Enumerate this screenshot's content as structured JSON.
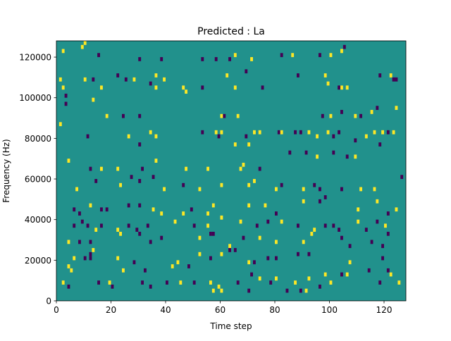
{
  "chart_data": {
    "type": "heatmap",
    "title": "Predicted : La",
    "xlabel": "Time step",
    "ylabel": "Frequency (Hz)",
    "xlim": [
      0,
      128
    ],
    "ylim": [
      0,
      128000
    ],
    "x_ticks": [
      0,
      20,
      40,
      60,
      80,
      100,
      120
    ],
    "y_ticks": [
      0,
      20000,
      40000,
      60000,
      80000,
      100000,
      120000
    ],
    "grid": false,
    "colormap": "viridis",
    "background_value": 0,
    "value_colors": {
      "-1": "#440154",
      "0": "#21918c",
      "1": "#fde725"
    },
    "bin_height_hz": 2000,
    "cells": [
      [
        2,
        122000,
        1
      ],
      [
        9,
        124000,
        1
      ],
      [
        10,
        126000,
        1
      ],
      [
        15,
        120000,
        -1
      ],
      [
        30,
        118000,
        -1
      ],
      [
        38,
        118000,
        -1
      ],
      [
        53,
        118000,
        -1
      ],
      [
        58,
        118000,
        -1
      ],
      [
        63,
        118000,
        -1
      ],
      [
        65,
        120000,
        1
      ],
      [
        71,
        118000,
        1
      ],
      [
        82,
        120000,
        -1
      ],
      [
        86,
        120000,
        1
      ],
      [
        96,
        120000,
        -1
      ],
      [
        100,
        120000,
        1
      ],
      [
        104,
        122000,
        1
      ],
      [
        105,
        124000,
        -1
      ],
      [
        1,
        108000,
        1
      ],
      [
        2,
        104000,
        1
      ],
      [
        3,
        100000,
        -1
      ],
      [
        10,
        108000,
        1
      ],
      [
        13,
        108000,
        -1
      ],
      [
        16,
        104000,
        1
      ],
      [
        22,
        110000,
        -1
      ],
      [
        25,
        108000,
        -1
      ],
      [
        28,
        108000,
        1
      ],
      [
        34,
        106000,
        -1
      ],
      [
        36,
        110000,
        1
      ],
      [
        36,
        104000,
        1
      ],
      [
        39,
        108000,
        1
      ],
      [
        46,
        104000,
        1
      ],
      [
        47,
        102000,
        1
      ],
      [
        53,
        104000,
        -1
      ],
      [
        62,
        110000,
        1
      ],
      [
        65,
        104000,
        1
      ],
      [
        69,
        112000,
        -1
      ],
      [
        75,
        104000,
        -1
      ],
      [
        88,
        110000,
        -1
      ],
      [
        98,
        110000,
        1
      ],
      [
        99,
        106000,
        1
      ],
      [
        103,
        104000,
        -1
      ],
      [
        104,
        104000,
        1
      ],
      [
        106,
        104000,
        1
      ],
      [
        118,
        110000,
        -1
      ],
      [
        122,
        110000,
        1
      ],
      [
        123,
        108000,
        -1
      ],
      [
        124,
        108000,
        -1
      ],
      [
        1,
        86000,
        1
      ],
      [
        3,
        96000,
        -1
      ],
      [
        13,
        98000,
        1
      ],
      [
        18,
        90000,
        1
      ],
      [
        24,
        90000,
        -1
      ],
      [
        30,
        90000,
        -1
      ],
      [
        60,
        90000,
        1
      ],
      [
        61,
        90000,
        -1
      ],
      [
        66,
        90000,
        1
      ],
      [
        97,
        90000,
        -1
      ],
      [
        100,
        90000,
        1
      ],
      [
        104,
        92000,
        -1
      ],
      [
        109,
        90000,
        1
      ],
      [
        111,
        90000,
        -1
      ],
      [
        115,
        92000,
        1
      ],
      [
        117,
        94000,
        -1
      ],
      [
        124,
        94000,
        1
      ],
      [
        11,
        80000,
        -1
      ],
      [
        26,
        80000,
        1
      ],
      [
        30,
        76000,
        -1
      ],
      [
        34,
        82000,
        1
      ],
      [
        36,
        80000,
        1
      ],
      [
        53,
        82000,
        -1
      ],
      [
        58,
        82000,
        1
      ],
      [
        59,
        80000,
        -1
      ],
      [
        60,
        82000,
        1
      ],
      [
        65,
        76000,
        1
      ],
      [
        69,
        80000,
        -1
      ],
      [
        70,
        76000,
        1
      ],
      [
        72,
        82000,
        1
      ],
      [
        74,
        82000,
        1
      ],
      [
        81,
        82000,
        -1
      ],
      [
        82,
        82000,
        1
      ],
      [
        87,
        82000,
        -1
      ],
      [
        89,
        82000,
        -1
      ],
      [
        92,
        82000,
        1
      ],
      [
        95,
        80000,
        1
      ],
      [
        99,
        82000,
        1
      ],
      [
        101,
        80000,
        -1
      ],
      [
        103,
        82000,
        -1
      ],
      [
        109,
        78000,
        -1
      ],
      [
        113,
        80000,
        1
      ],
      [
        116,
        82000,
        1
      ],
      [
        118,
        76000,
        -1
      ],
      [
        119,
        82000,
        1
      ],
      [
        121,
        82000,
        -1
      ],
      [
        123,
        82000,
        1
      ],
      [
        4,
        68000,
        1
      ],
      [
        12,
        64000,
        -1
      ],
      [
        16,
        64000,
        1
      ],
      [
        22,
        64000,
        1
      ],
      [
        31,
        64000,
        -1
      ],
      [
        36,
        68000,
        1
      ],
      [
        47,
        64000,
        1
      ],
      [
        55,
        64000,
        1
      ],
      [
        67,
        64000,
        1
      ],
      [
        68,
        66000,
        1
      ],
      [
        74,
        64000,
        -1
      ],
      [
        85,
        72000,
        -1
      ],
      [
        91,
        72000,
        -1
      ],
      [
        95,
        70000,
        1
      ],
      [
        101,
        72000,
        -1
      ],
      [
        106,
        70000,
        -1
      ],
      [
        109,
        70000,
        1
      ],
      [
        126,
        60000,
        -1
      ],
      [
        7,
        54000,
        1
      ],
      [
        14,
        58000,
        -1
      ],
      [
        23,
        56000,
        1
      ],
      [
        27,
        60000,
        -1
      ],
      [
        30,
        58000,
        -1
      ],
      [
        35,
        60000,
        -1
      ],
      [
        39,
        54000,
        1
      ],
      [
        46,
        56000,
        -1
      ],
      [
        52,
        54000,
        1
      ],
      [
        60,
        56000,
        1
      ],
      [
        70,
        56000,
        1
      ],
      [
        72,
        58000,
        1
      ],
      [
        80,
        54000,
        1
      ],
      [
        82,
        56000,
        -1
      ],
      [
        90,
        54000,
        1
      ],
      [
        94,
        56000,
        -1
      ],
      [
        96,
        54000,
        -1
      ],
      [
        104,
        54000,
        -1
      ],
      [
        111,
        54000,
        1
      ],
      [
        116,
        54000,
        1
      ],
      [
        6,
        44000,
        -1
      ],
      [
        8,
        42000,
        -1
      ],
      [
        12,
        46000,
        1
      ],
      [
        16,
        44000,
        -1
      ],
      [
        18,
        44000,
        -1
      ],
      [
        26,
        46000,
        -1
      ],
      [
        30,
        46000,
        -1
      ],
      [
        35,
        44000,
        1
      ],
      [
        38,
        42000,
        1
      ],
      [
        46,
        42000,
        1
      ],
      [
        49,
        44000,
        -1
      ],
      [
        55,
        42000,
        1
      ],
      [
        57,
        46000,
        1
      ],
      [
        70,
        46000,
        1
      ],
      [
        76,
        46000,
        1
      ],
      [
        80,
        42000,
        -1
      ],
      [
        90,
        48000,
        1
      ],
      [
        96,
        48000,
        -1
      ],
      [
        98,
        50000,
        -1
      ],
      [
        110,
        44000,
        1
      ],
      [
        117,
        48000,
        1
      ],
      [
        121,
        42000,
        -1
      ],
      [
        124,
        44000,
        1
      ],
      [
        6,
        36000,
        -1
      ],
      [
        9,
        38000,
        -1
      ],
      [
        11,
        36000,
        -1
      ],
      [
        14,
        34000,
        1
      ],
      [
        16,
        36000,
        -1
      ],
      [
        26,
        36000,
        -1
      ],
      [
        29,
        34000,
        -1
      ],
      [
        33,
        36000,
        -1
      ],
      [
        43,
        38000,
        1
      ],
      [
        50,
        36000,
        -1
      ],
      [
        55,
        36000,
        1
      ],
      [
        60,
        40000,
        1
      ],
      [
        67,
        38000,
        1
      ],
      [
        73,
        36000,
        -1
      ],
      [
        77,
        38000,
        -1
      ],
      [
        82,
        38000,
        1
      ],
      [
        88,
        36000,
        -1
      ],
      [
        94,
        34000,
        1
      ],
      [
        98,
        36000,
        -1
      ],
      [
        101,
        36000,
        -1
      ],
      [
        103,
        34000,
        -1
      ],
      [
        110,
        38000,
        1
      ],
      [
        113,
        34000,
        -1
      ],
      [
        117,
        38000,
        -1
      ],
      [
        120,
        36000,
        1
      ],
      [
        4,
        28000,
        1
      ],
      [
        8,
        28000,
        -1
      ],
      [
        12,
        28000,
        -1
      ],
      [
        12,
        22000,
        -1
      ],
      [
        22,
        34000,
        1
      ],
      [
        23,
        32000,
        1
      ],
      [
        30,
        32000,
        -1
      ],
      [
        34,
        28000,
        -1
      ],
      [
        38,
        30000,
        -1
      ],
      [
        52,
        30000,
        1
      ],
      [
        56,
        32000,
        -1
      ],
      [
        57,
        32000,
        -1
      ],
      [
        63,
        26000,
        1
      ],
      [
        68,
        30000,
        -1
      ],
      [
        74,
        30000,
        1
      ],
      [
        80,
        28000,
        1
      ],
      [
        90,
        28000,
        1
      ],
      [
        93,
        32000,
        1
      ],
      [
        104,
        30000,
        -1
      ],
      [
        107,
        26000,
        -1
      ],
      [
        115,
        28000,
        -1
      ],
      [
        119,
        26000,
        -1
      ],
      [
        121,
        32000,
        -1
      ],
      [
        4,
        16000,
        1
      ],
      [
        5,
        14000,
        1
      ],
      [
        6,
        20000,
        1
      ],
      [
        10,
        20000,
        -1
      ],
      [
        12,
        20000,
        -1
      ],
      [
        13,
        24000,
        1
      ],
      [
        22,
        20000,
        1
      ],
      [
        24,
        14000,
        1
      ],
      [
        28,
        18000,
        -1
      ],
      [
        32,
        14000,
        -1
      ],
      [
        42,
        16000,
        1
      ],
      [
        44,
        18000,
        1
      ],
      [
        48,
        16000,
        -1
      ],
      [
        52,
        22000,
        1
      ],
      [
        56,
        20000,
        -1
      ],
      [
        60,
        22000,
        1
      ],
      [
        63,
        24000,
        -1
      ],
      [
        65,
        24000,
        -1
      ],
      [
        70,
        18000,
        1
      ],
      [
        72,
        18000,
        -1
      ],
      [
        77,
        20000,
        -1
      ],
      [
        80,
        20000,
        -1
      ],
      [
        88,
        22000,
        -1
      ],
      [
        92,
        22000,
        -1
      ],
      [
        107,
        18000,
        1
      ],
      [
        114,
        14000,
        -1
      ],
      [
        119,
        20000,
        -1
      ],
      [
        121,
        14000,
        -1
      ],
      [
        2,
        8000,
        1
      ],
      [
        4,
        6000,
        -1
      ],
      [
        15,
        8000,
        -1
      ],
      [
        19,
        8000,
        1
      ],
      [
        20,
        6000,
        -1
      ],
      [
        31,
        8000,
        -1
      ],
      [
        34,
        6000,
        -1
      ],
      [
        40,
        8000,
        -1
      ],
      [
        45,
        8000,
        1
      ],
      [
        50,
        8000,
        -1
      ],
      [
        56,
        8000,
        1
      ],
      [
        57,
        4000,
        1
      ],
      [
        59,
        6000,
        1
      ],
      [
        60,
        4000,
        1
      ],
      [
        66,
        8000,
        -1
      ],
      [
        70,
        4000,
        -1
      ],
      [
        71,
        12000,
        -1
      ],
      [
        74,
        10000,
        1
      ],
      [
        78,
        8000,
        -1
      ],
      [
        80,
        10000,
        1
      ],
      [
        84,
        4000,
        -1
      ],
      [
        87,
        8000,
        1
      ],
      [
        89,
        4000,
        -1
      ],
      [
        91,
        4000,
        1
      ],
      [
        92,
        10000,
        1
      ],
      [
        96,
        6000,
        -1
      ],
      [
        98,
        12000,
        1
      ],
      [
        100,
        8000,
        1
      ],
      [
        104,
        12000,
        -1
      ],
      [
        106,
        12000,
        1
      ],
      [
        118,
        8000,
        -1
      ],
      [
        122,
        12000,
        1
      ],
      [
        125,
        8000,
        1
      ]
    ]
  }
}
